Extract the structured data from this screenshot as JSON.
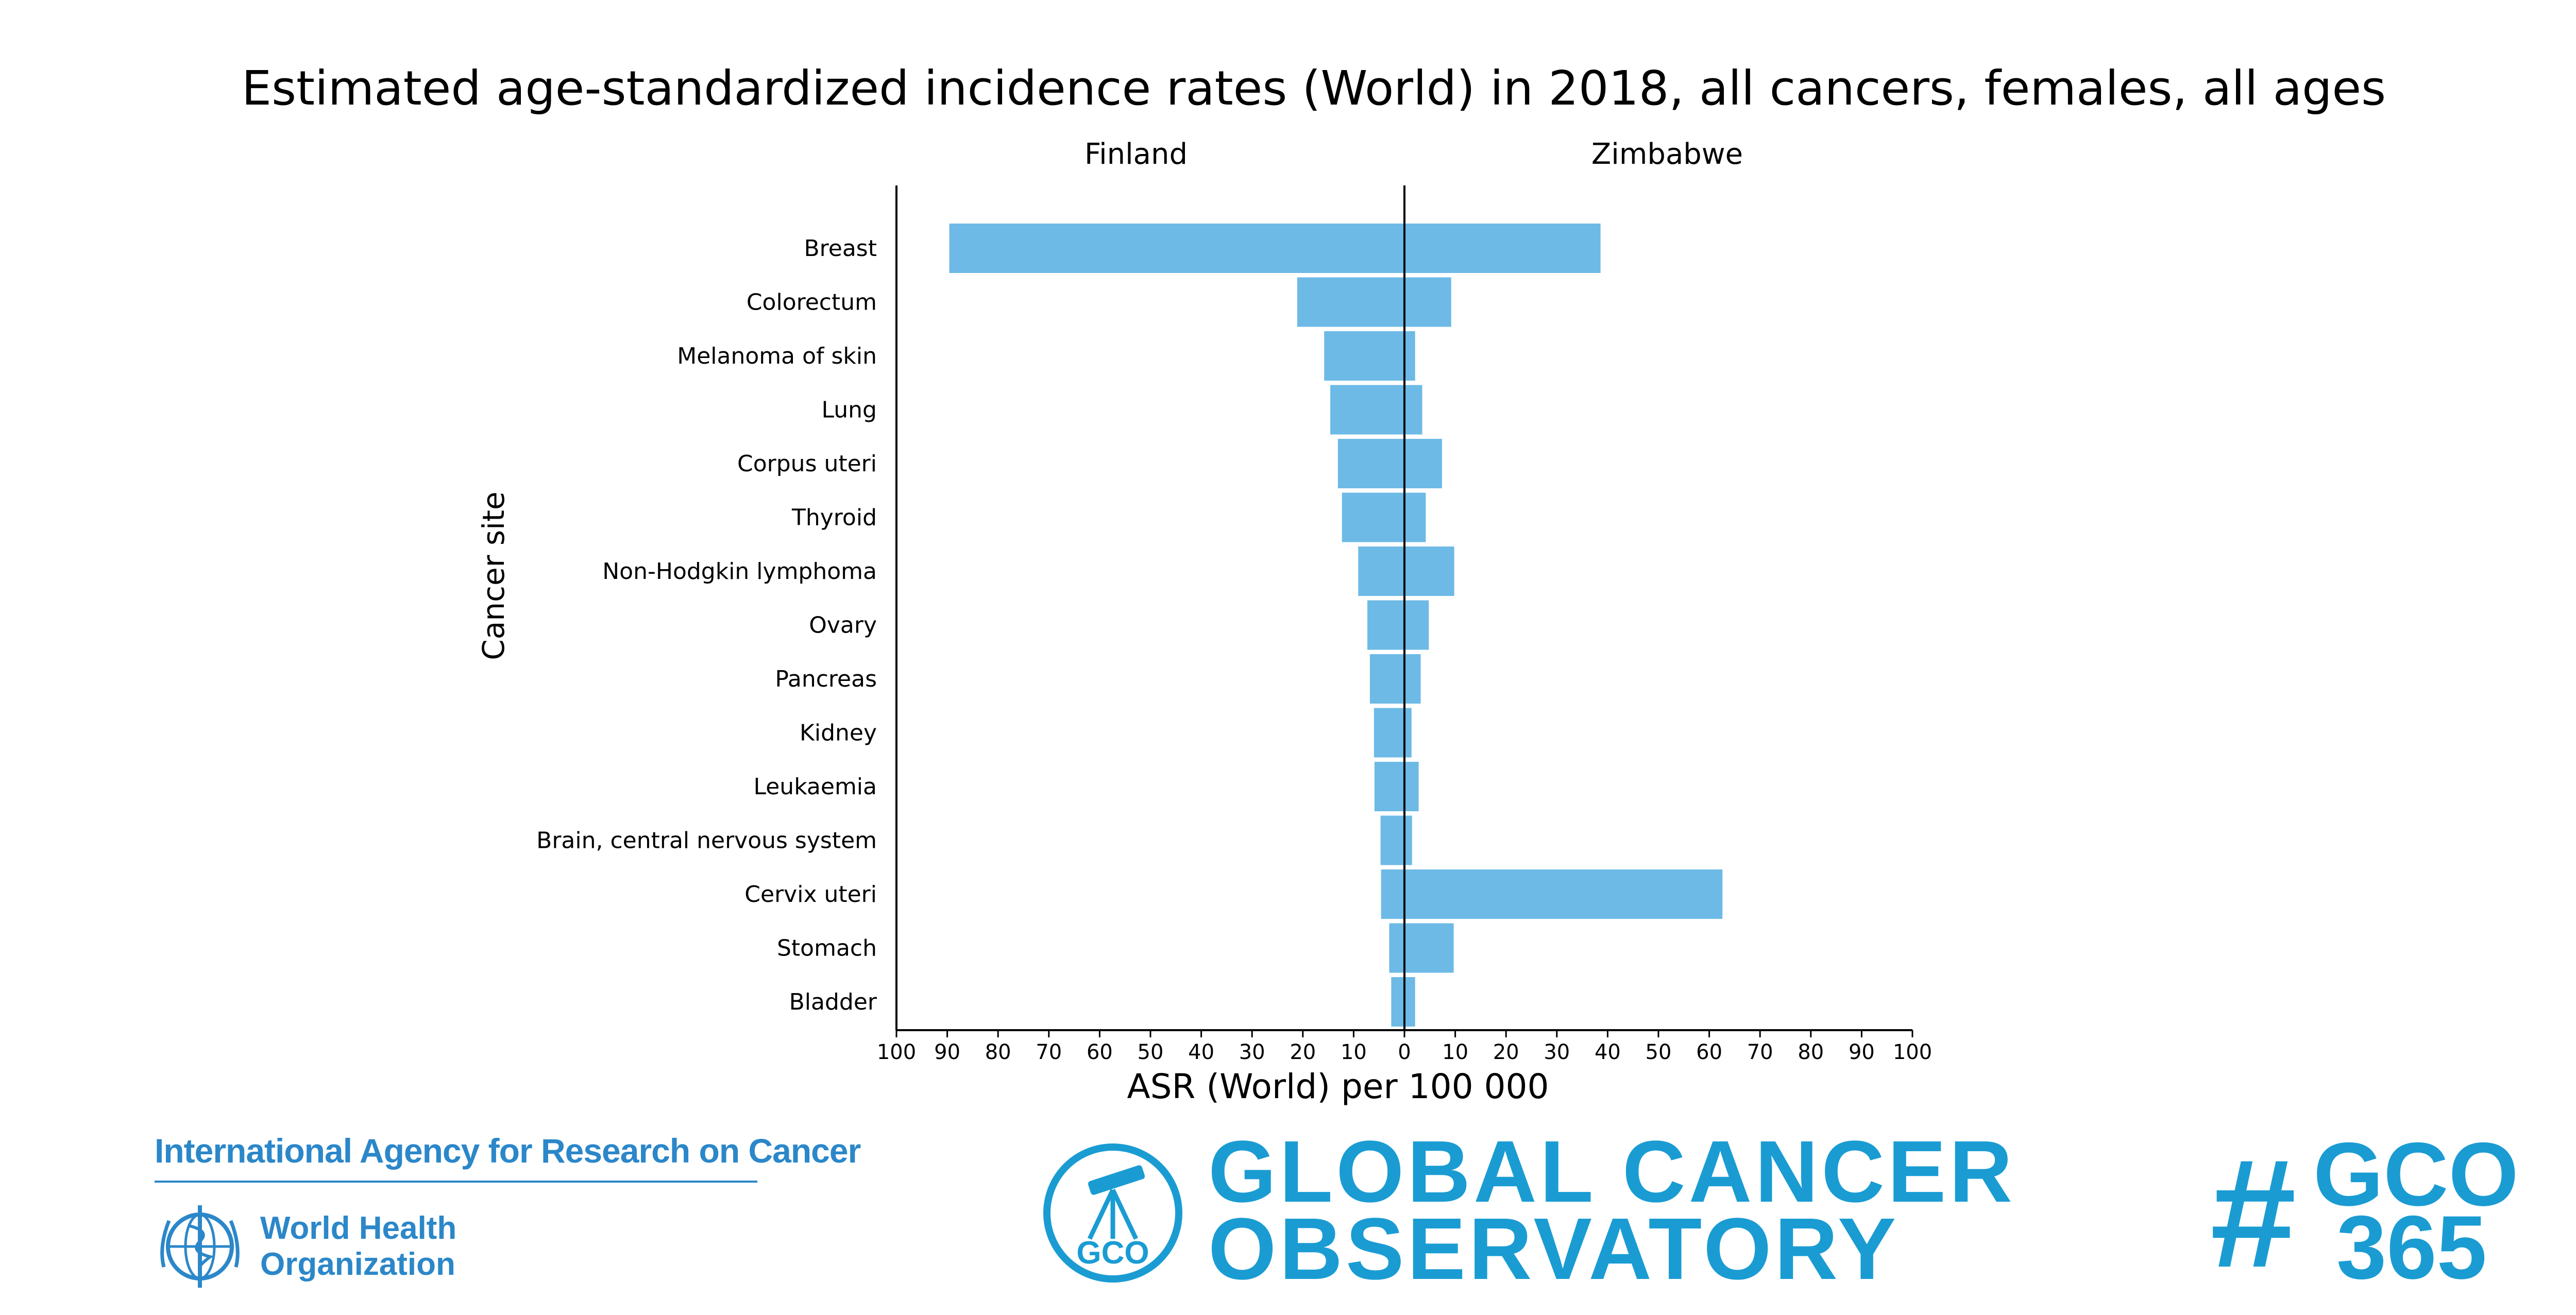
{
  "chart_data": {
    "type": "bar",
    "orientation": "horizontal-population-pyramid",
    "title": "Estimated age-standardized incidence rates (World) in 2018, all cancers, females, all ages",
    "xlabel": "ASR (World) per 100 000",
    "ylabel": "Cancer site",
    "xlim": [
      -100,
      100
    ],
    "xtick_labels": [
      "100",
      "90",
      "80",
      "70",
      "60",
      "50",
      "40",
      "30",
      "20",
      "10",
      "0",
      "10",
      "20",
      "30",
      "40",
      "50",
      "60",
      "70",
      "80",
      "90",
      "100"
    ],
    "grid": false,
    "bar_color": "#6dbae6",
    "categories": [
      "Breast",
      "Colorectum",
      "Melanoma of skin",
      "Lung",
      "Corpus uteri",
      "Thyroid",
      "Non-Hodgkin lymphoma",
      "Ovary",
      "Pancreas",
      "Kidney",
      "Leukaemia",
      "Brain, central nervous system",
      "Cervix uteri",
      "Stomach",
      "Bladder"
    ],
    "series": [
      {
        "name": "Finland",
        "values": [
          89.6,
          21.1,
          15.8,
          14.6,
          13.1,
          12.3,
          9.1,
          7.3,
          6.8,
          6.0,
          5.9,
          4.7,
          4.6,
          3.0,
          2.6
        ]
      },
      {
        "name": "Zimbabwe",
        "values": [
          38.6,
          9.2,
          2.1,
          3.5,
          7.4,
          4.2,
          9.8,
          4.8,
          3.2,
          1.4,
          2.8,
          1.5,
          62.6,
          9.7,
          2.1
        ]
      }
    ]
  },
  "footer": {
    "iarc_name": "International Agency for Research on Cancer",
    "who_line1": "World Health",
    "who_line2": "Organization",
    "gco_badge": "GCO",
    "gco_line1": "GLOBAL CANCER",
    "gco_line2": "OBSERVATORY",
    "hashtag_symbol": "#",
    "hashtag_line1": "GCO",
    "hashtag_line2": "365",
    "brand_color": "#1a9cd3",
    "iarc_color": "#2b87c9"
  }
}
